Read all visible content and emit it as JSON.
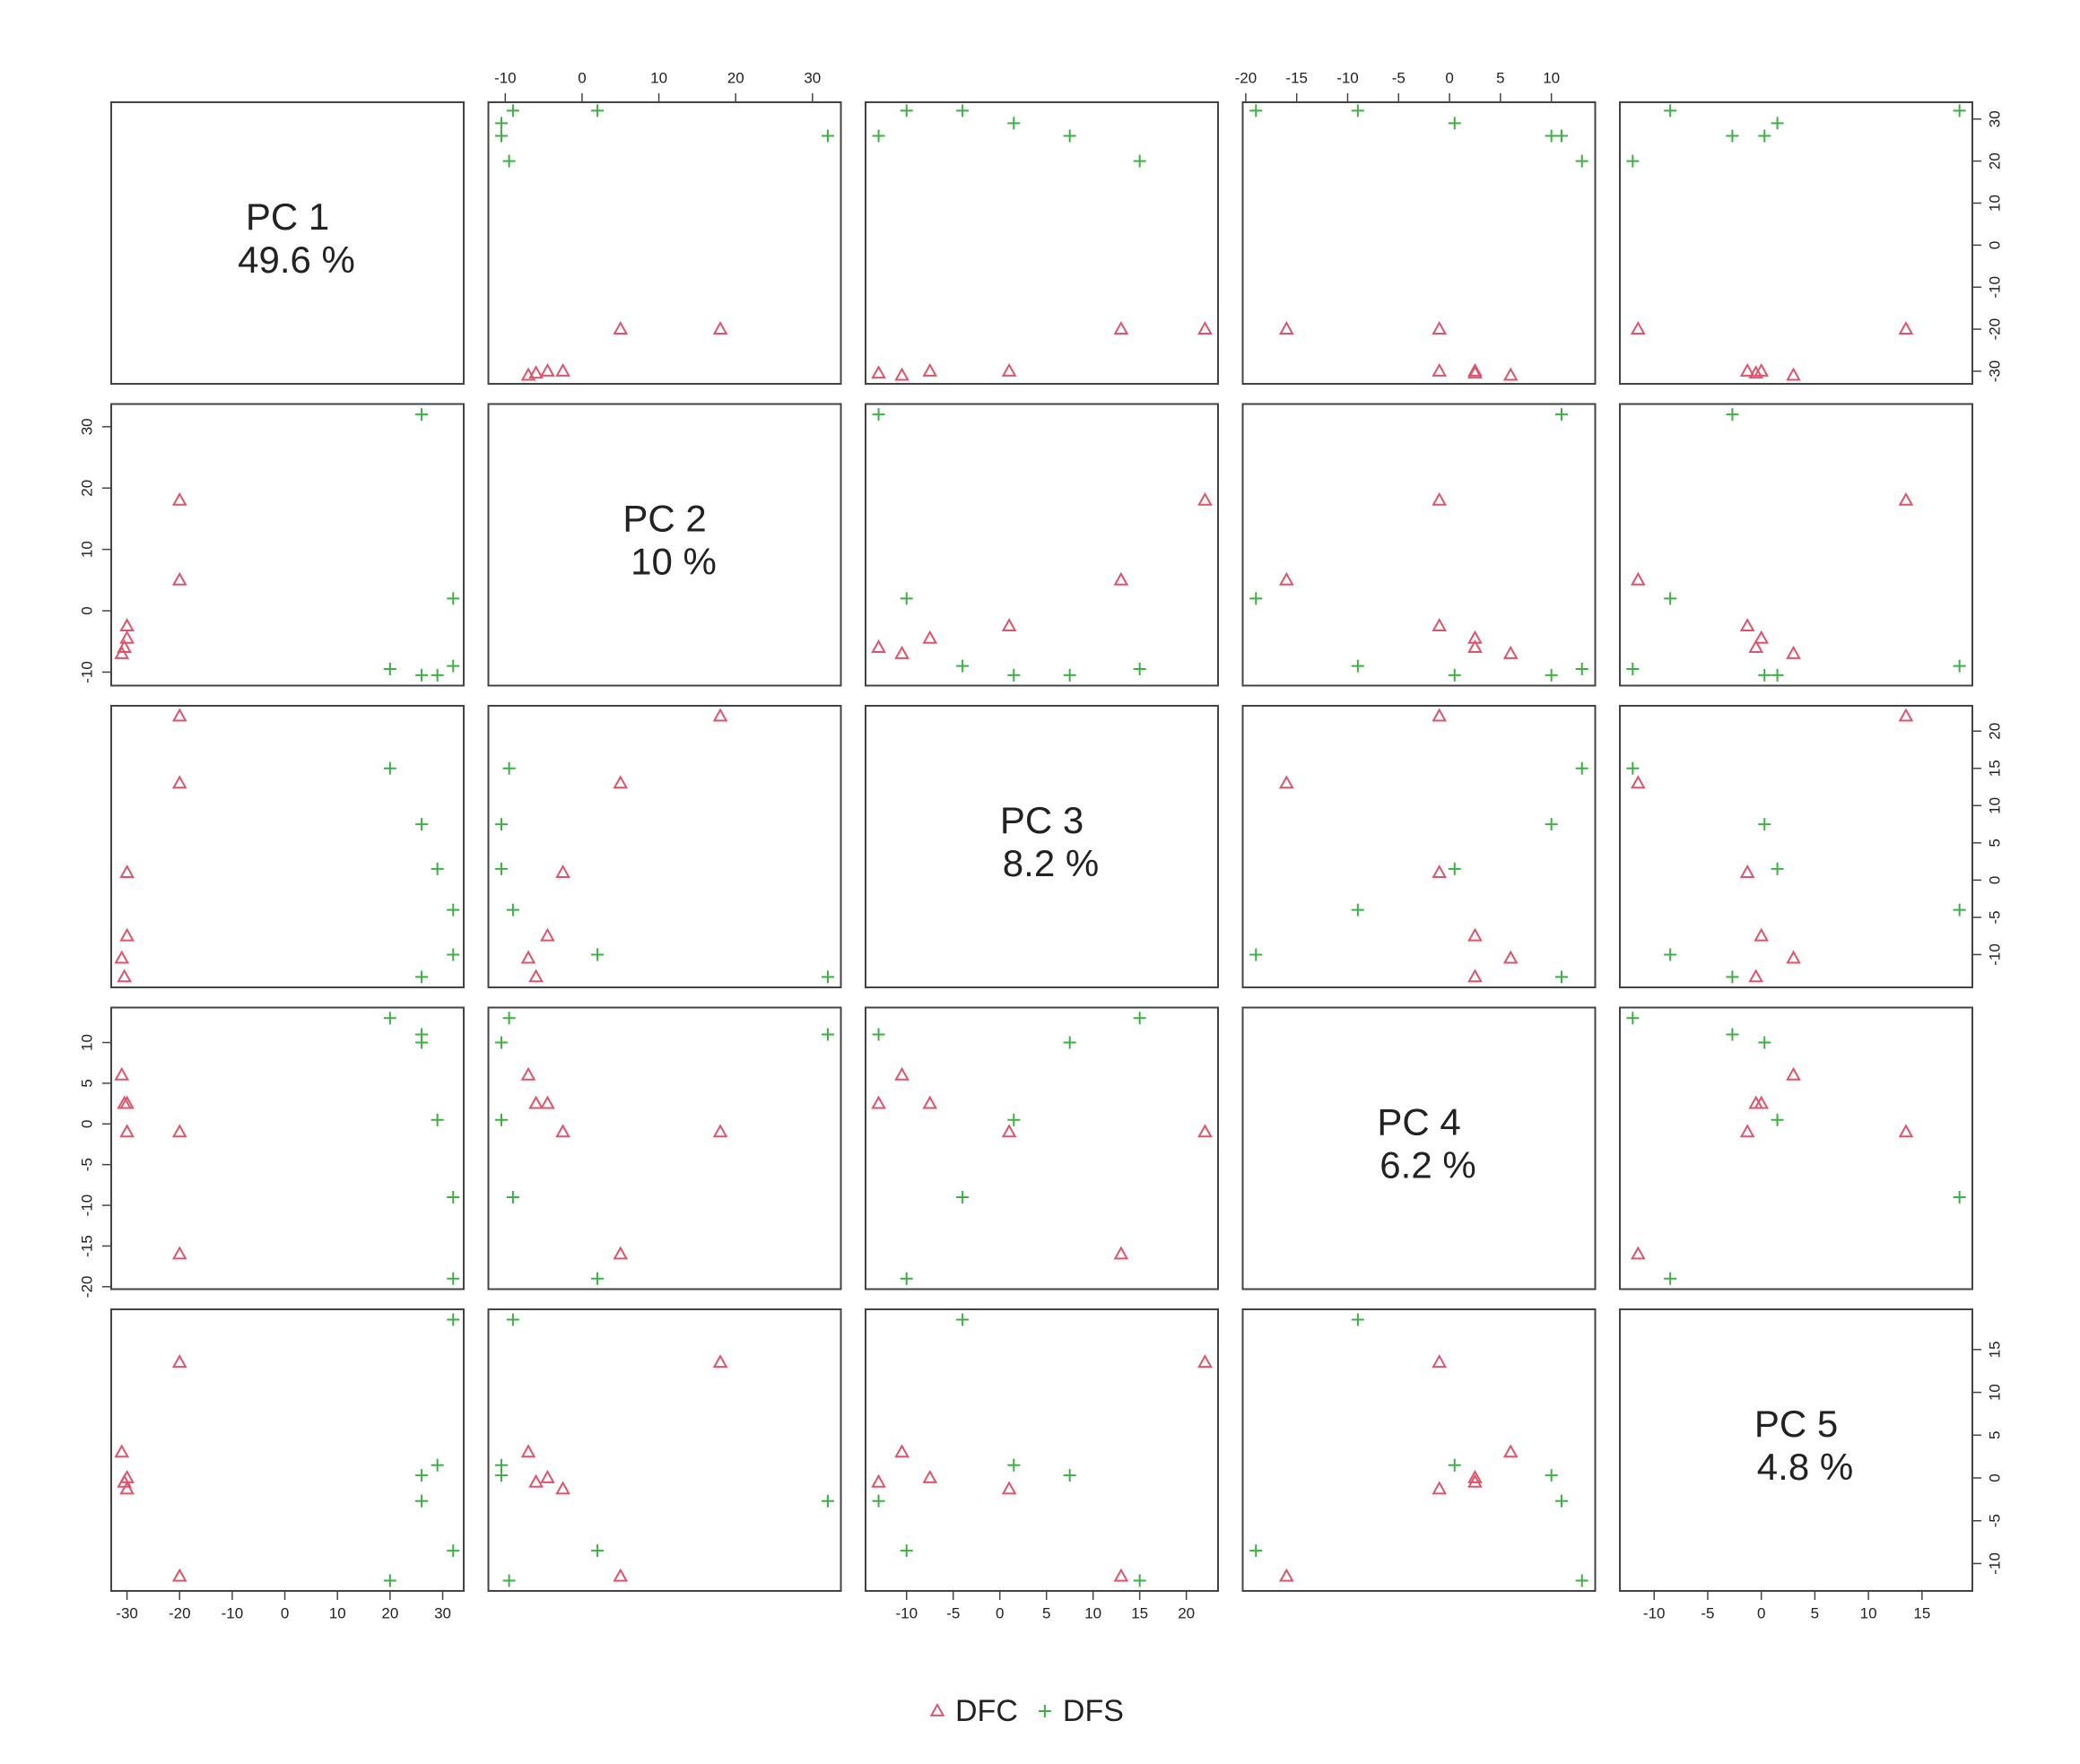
{
  "chart_data": {
    "type": "scatter-matrix",
    "variables": [
      {
        "label": "PC 1",
        "variance": "49.6 %",
        "lim": [
          -33,
          34
        ],
        "ticks": [
          -30,
          -20,
          -10,
          0,
          10,
          20,
          30
        ]
      },
      {
        "label": "PC 2",
        "variance": "10 %",
        "lim": [
          -12.2,
          33.7
        ],
        "ticks": [
          -10,
          0,
          10,
          20,
          30
        ]
      },
      {
        "label": "PC 3",
        "variance": "8.2 %",
        "lim": [
          -14.4,
          23.4
        ],
        "ticks": [
          -10,
          -5,
          0,
          5,
          10,
          15,
          20
        ]
      },
      {
        "label": "PC 4",
        "variance": "6.2 %",
        "lim": [
          -20.3,
          14.3
        ],
        "ticks": [
          -20,
          -15,
          -10,
          -5,
          0,
          5,
          10
        ]
      },
      {
        "label": "PC 5",
        "variance": "4.8 %",
        "lim": [
          -13.2,
          19.7
        ],
        "ticks": [
          -10,
          -5,
          0,
          5,
          10,
          15
        ]
      }
    ],
    "series": [
      {
        "name": "DFC",
        "color": "#df536b",
        "marker": "triangle",
        "values": [
          [
            -20,
            18,
            22,
            -1,
            13.5
          ],
          [
            -20,
            5,
            13,
            -16,
            -11.5
          ],
          [
            -31,
            -7,
            -10.5,
            6,
            3
          ],
          [
            -30.5,
            -6,
            -13,
            2.5,
            -0.5
          ],
          [
            -30,
            -4.5,
            -7.5,
            2.5,
            0
          ],
          [
            -30,
            -2.5,
            1,
            -1,
            -1.3
          ]
        ]
      },
      {
        "name": "DFS",
        "color": "#3cb043",
        "marker": "plus",
        "values": [
          [
            20,
            -9.5,
            15,
            13,
            -12
          ],
          [
            26,
            -10.5,
            7.5,
            10,
            0.3
          ],
          [
            29,
            -10.5,
            1.5,
            0.5,
            1.5
          ],
          [
            32,
            -9,
            -4,
            -9,
            18.5
          ],
          [
            32,
            2,
            -10,
            -19,
            -8.5
          ],
          [
            26,
            32,
            -13,
            11,
            -2.7
          ]
        ]
      }
    ]
  }
}
